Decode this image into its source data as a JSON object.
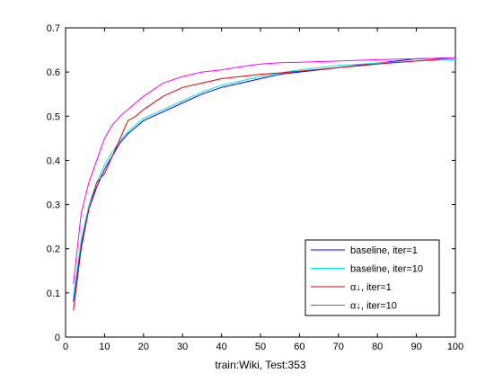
{
  "chart_data": {
    "type": "line",
    "title": "",
    "xlabel": "train:Wiki, Test:353",
    "ylabel": "",
    "xlim": [
      0,
      100
    ],
    "ylim": [
      0,
      0.7
    ],
    "xticks": [
      "0",
      "10",
      "20",
      "30",
      "40",
      "50",
      "60",
      "70",
      "80",
      "90",
      "100"
    ],
    "yticks": [
      "0",
      "0.1",
      "0.2",
      "0.3",
      "0.4",
      "0.5",
      "0.6",
      "0.7"
    ],
    "grid": false,
    "legend_position": "bottom-right",
    "x": [
      2,
      4,
      6,
      8,
      10,
      12,
      14,
      16,
      18,
      20,
      25,
      30,
      35,
      40,
      45,
      50,
      55,
      60,
      70,
      80,
      90,
      100
    ],
    "series": [
      {
        "name": "baseline, iter=1",
        "color": "#0000ff",
        "values": [
          0.08,
          0.21,
          0.29,
          0.34,
          0.38,
          0.41,
          0.44,
          0.46,
          0.475,
          0.49,
          0.51,
          0.53,
          0.55,
          0.565,
          0.575,
          0.585,
          0.595,
          0.6,
          0.61,
          0.62,
          0.63,
          0.632
        ]
      },
      {
        "name": "baseline, iter=10",
        "color": "#00e5e5",
        "values": [
          0.09,
          0.22,
          0.3,
          0.35,
          0.39,
          0.42,
          0.445,
          0.465,
          0.48,
          0.495,
          0.515,
          0.535,
          0.555,
          0.57,
          0.58,
          0.59,
          0.598,
          0.605,
          0.615,
          0.62,
          0.625,
          0.628
        ]
      },
      {
        "name": "α↓, iter=1",
        "color": "#e00000",
        "values": [
          0.06,
          0.2,
          0.29,
          0.35,
          0.37,
          0.41,
          0.45,
          0.49,
          0.5,
          0.515,
          0.545,
          0.565,
          0.575,
          0.585,
          0.59,
          0.595,
          0.598,
          0.602,
          0.61,
          0.618,
          0.625,
          0.632
        ]
      },
      {
        "name": "α↓, iter=10",
        "color": "#ff00ff",
        "values": [
          0.12,
          0.28,
          0.35,
          0.4,
          0.45,
          0.48,
          0.5,
          0.515,
          0.53,
          0.545,
          0.575,
          0.59,
          0.6,
          0.605,
          0.612,
          0.618,
          0.621,
          0.622,
          0.625,
          0.628,
          0.63,
          0.632
        ]
      }
    ]
  }
}
